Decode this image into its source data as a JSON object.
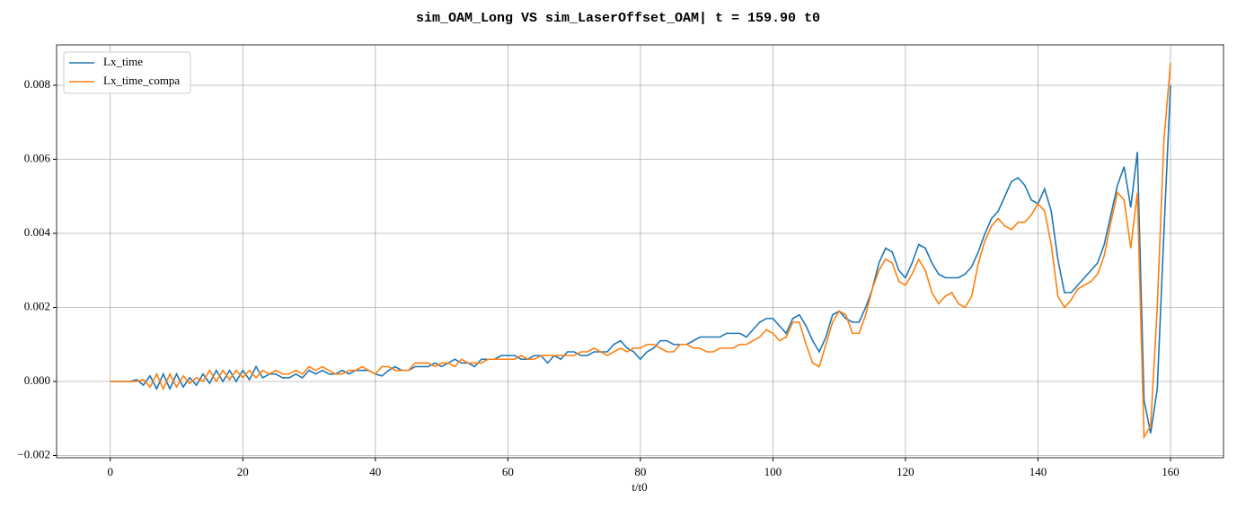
{
  "chart_data": {
    "type": "line",
    "title": "sim_OAM_Long VS sim_LaserOffset_OAM| t = 159.90 t0",
    "x_label": "t/t0",
    "x": [
      0,
      1,
      2,
      3,
      4,
      5,
      6,
      7,
      8,
      9,
      10,
      11,
      12,
      13,
      14,
      15,
      16,
      17,
      18,
      19,
      20,
      21,
      22,
      23,
      24,
      25,
      26,
      27,
      28,
      29,
      30,
      31,
      32,
      33,
      34,
      35,
      36,
      37,
      38,
      39,
      40,
      41,
      42,
      43,
      44,
      45,
      46,
      47,
      48,
      49,
      50,
      51,
      52,
      53,
      54,
      55,
      56,
      57,
      58,
      59,
      60,
      61,
      62,
      63,
      64,
      65,
      66,
      67,
      68,
      69,
      70,
      71,
      72,
      73,
      74,
      75,
      76,
      77,
      78,
      79,
      80,
      81,
      82,
      83,
      84,
      85,
      86,
      87,
      88,
      89,
      90,
      91,
      92,
      93,
      94,
      95,
      96,
      97,
      98,
      99,
      100,
      101,
      102,
      103,
      104,
      105,
      106,
      107,
      108,
      109,
      110,
      111,
      112,
      113,
      114,
      115,
      116,
      117,
      118,
      119,
      120,
      121,
      122,
      123,
      124,
      125,
      126,
      127,
      128,
      129,
      130,
      131,
      132,
      133,
      134,
      135,
      136,
      137,
      138,
      139,
      140,
      141,
      142,
      143,
      144,
      145,
      146,
      147,
      148,
      149,
      150,
      151,
      152,
      153,
      154,
      155,
      156,
      157,
      158,
      159,
      160
    ],
    "series": [
      {
        "name": "Lx_time",
        "color": "#1f77b4",
        "values": [
          0,
          0,
          0,
          0,
          5e-05,
          -0.0001,
          0.00015,
          -0.0002,
          0.0002,
          -0.0002,
          0.0002,
          -0.00015,
          0.0001,
          -0.0001,
          0.0002,
          -5e-05,
          0.0003,
          0,
          0.0003,
          0,
          0.0003,
          5e-05,
          0.0004,
          0.0001,
          0.0002,
          0.0002,
          0.0001,
          0.0001,
          0.0002,
          0.0001,
          0.0003,
          0.0002,
          0.0003,
          0.0002,
          0.0002,
          0.0003,
          0.0002,
          0.0003,
          0.0003,
          0.0003,
          0.0002,
          0.00015,
          0.0003,
          0.0004,
          0.0003,
          0.0003,
          0.0004,
          0.0004,
          0.0004,
          0.0005,
          0.0004,
          0.0005,
          0.0006,
          0.0005,
          0.0005,
          0.0004,
          0.0006,
          0.0006,
          0.0006,
          0.0007,
          0.0007,
          0.0007,
          0.0006,
          0.0006,
          0.0007,
          0.0007,
          0.0005,
          0.0007,
          0.0006,
          0.0008,
          0.0008,
          0.0007,
          0.0007,
          0.0008,
          0.0008,
          0.0008,
          0.001,
          0.0011,
          0.0009,
          0.0008,
          0.0006,
          0.0008,
          0.0009,
          0.0011,
          0.0011,
          0.001,
          0.001,
          0.001,
          0.0011,
          0.0012,
          0.0012,
          0.0012,
          0.0012,
          0.0013,
          0.0013,
          0.0013,
          0.0012,
          0.0014,
          0.0016,
          0.0017,
          0.0017,
          0.0015,
          0.0013,
          0.0017,
          0.0018,
          0.0015,
          0.0011,
          0.0008,
          0.0012,
          0.0018,
          0.0019,
          0.0017,
          0.0016,
          0.0016,
          0.002,
          0.0025,
          0.0032,
          0.0036,
          0.0035,
          0.003,
          0.0028,
          0.0032,
          0.0037,
          0.0036,
          0.0032,
          0.0029,
          0.0028,
          0.0028,
          0.0028,
          0.0029,
          0.0031,
          0.0035,
          0.004,
          0.0044,
          0.0046,
          0.005,
          0.0054,
          0.0055,
          0.0053,
          0.0049,
          0.0048,
          0.0052,
          0.0046,
          0.0033,
          0.0024,
          0.0024,
          0.0026,
          0.0028,
          0.003,
          0.0032,
          0.0037,
          0.0045,
          0.0053,
          0.0058,
          0.0047,
          0.0062,
          -0.0005,
          -0.0014,
          -0.0002,
          0.004,
          0.008
        ]
      },
      {
        "name": "Lx_time_compa",
        "color": "#ff7f0e",
        "values": [
          0,
          0,
          0,
          0,
          0,
          5e-05,
          -0.00015,
          0.0002,
          -0.0002,
          0.0002,
          -0.00015,
          0.00015,
          -5e-05,
          0.0001,
          0,
          0.0003,
          0,
          0.0003,
          5e-05,
          0.0003,
          0.0001,
          0.0003,
          0.0001,
          0.0003,
          0.0002,
          0.0003,
          0.0002,
          0.0002,
          0.0003,
          0.0002,
          0.0004,
          0.0003,
          0.0004,
          0.0003,
          0.0002,
          0.0002,
          0.0003,
          0.0003,
          0.0004,
          0.0003,
          0.0002,
          0.0004,
          0.0004,
          0.0003,
          0.0003,
          0.0003,
          0.0005,
          0.0005,
          0.0005,
          0.0004,
          0.0005,
          0.0005,
          0.0004,
          0.0006,
          0.0005,
          0.0005,
          0.0005,
          0.0006,
          0.0006,
          0.0006,
          0.0006,
          0.0006,
          0.0007,
          0.0006,
          0.0006,
          0.0007,
          0.0007,
          0.0007,
          0.0007,
          0.0007,
          0.0007,
          0.0008,
          0.0008,
          0.0009,
          0.0008,
          0.0007,
          0.0008,
          0.0009,
          0.0008,
          0.0009,
          0.0009,
          0.001,
          0.001,
          0.0009,
          0.0008,
          0.0008,
          0.001,
          0.001,
          0.0009,
          0.0009,
          0.0008,
          0.0008,
          0.0009,
          0.0009,
          0.0009,
          0.001,
          0.001,
          0.0011,
          0.0012,
          0.0014,
          0.0013,
          0.0011,
          0.0012,
          0.0016,
          0.0016,
          0.001,
          0.0005,
          0.0004,
          0.001,
          0.0016,
          0.0019,
          0.0018,
          0.0013,
          0.0013,
          0.0018,
          0.0025,
          0.003,
          0.0033,
          0.0032,
          0.0027,
          0.0026,
          0.0029,
          0.0033,
          0.003,
          0.0024,
          0.0021,
          0.0023,
          0.0024,
          0.0021,
          0.002,
          0.0023,
          0.0032,
          0.0038,
          0.0042,
          0.0044,
          0.0042,
          0.0041,
          0.0043,
          0.0043,
          0.0045,
          0.0048,
          0.0046,
          0.0037,
          0.0023,
          0.002,
          0.0022,
          0.0025,
          0.0026,
          0.0027,
          0.0029,
          0.0034,
          0.0043,
          0.0051,
          0.0049,
          0.0036,
          0.0051,
          -0.0015,
          -0.0012,
          0.002,
          0.0065,
          0.0086
        ]
      }
    ],
    "xlim": [
      -8.1,
      168
    ],
    "ylim": [
      -0.00206,
      0.00909
    ],
    "xticks": [
      0,
      20,
      40,
      60,
      80,
      100,
      120,
      140,
      160
    ],
    "yticks": [
      {
        "value": -0.002,
        "label": "−0.002"
      },
      {
        "value": 0,
        "label": "0.000"
      },
      {
        "value": 0.002,
        "label": "0.002"
      },
      {
        "value": 0.004,
        "label": "0.004"
      },
      {
        "value": 0.006,
        "label": "0.006"
      },
      {
        "value": 0.008,
        "label": "0.008"
      }
    ],
    "grid": true,
    "legend": "upper-left"
  }
}
